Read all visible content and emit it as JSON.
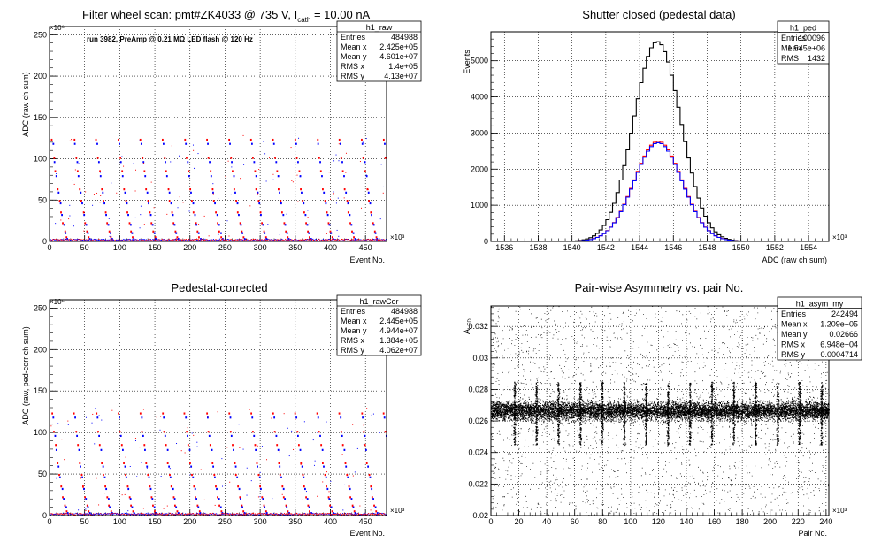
{
  "panels": [
    {
      "title": "Filter wheel scan: pmt#ZK4033 @   735 V, I",
      "title_sub": "cath",
      "title_tail": " = 10.00 nA",
      "annotation": "run 3982, PreAmp @ 0.21 MΩ LED flash @  120 Hz",
      "xlabel": "Event No.",
      "ylabel": "ADC (raw ch sum)",
      "x_exponent": "×10³",
      "y_exponent": "×10⁶",
      "stats": {
        "name": "h1_raw",
        "rows": [
          [
            "Entries",
            "484988"
          ],
          [
            "Mean x",
            "2.425e+05"
          ],
          [
            "Mean y",
            "4.601e+07"
          ],
          [
            "RMS x",
            "1.4e+05"
          ],
          [
            "RMS y",
            "4.13e+07"
          ]
        ]
      }
    },
    {
      "title": "Shutter closed (pedestal data)",
      "xlabel": "ADC (raw ch sum)",
      "ylabel": "Events",
      "x_exponent": "×10³",
      "stats": {
        "name": "h1_ped",
        "rows": [
          [
            "Entries",
            "100096"
          ],
          [
            "Mean",
            "1.545e+06"
          ],
          [
            "RMS",
            "1432"
          ]
        ]
      }
    },
    {
      "title": "Pedestal-corrected",
      "xlabel": "Event No.",
      "ylabel": "ADC (raw, ped-corr ch sum)",
      "x_exponent": "×10³",
      "y_exponent": "×10⁶",
      "stats": {
        "name": "h1_rawCor",
        "rows": [
          [
            "Entries",
            "484988"
          ],
          [
            "Mean x",
            "2.445e+05"
          ],
          [
            "Mean y",
            "4.944e+07"
          ],
          [
            "RMS x",
            "1.384e+05"
          ],
          [
            "RMS y",
            "4.062e+07"
          ]
        ]
      }
    },
    {
      "title": "Pair-wise Asymmetry vs. pair No.",
      "xlabel": "Pair No.",
      "ylabel": "A",
      "ylabel_sub": "LED",
      "x_exponent": "×10³",
      "stats": {
        "name": "h1_asym_my",
        "rows": [
          [
            "Entries",
            "242494"
          ],
          [
            "Mean x",
            "1.209e+05"
          ],
          [
            "Mean y",
            "0.02666"
          ],
          [
            "RMS x",
            "6.948e+04"
          ],
          [
            "RMS y",
            "0.0004714"
          ]
        ]
      }
    }
  ],
  "colors": {
    "red": "#ff0000",
    "blue": "#0000ff",
    "black": "#000000",
    "grid": "#000000"
  },
  "chart_data": [
    {
      "type": "scatter",
      "xlim": [
        0,
        480
      ],
      "ylim": [
        0,
        260
      ],
      "xticks": [
        0,
        50,
        100,
        150,
        200,
        250,
        300,
        350,
        400,
        450
      ],
      "yticks": [
        0,
        50,
        100,
        150,
        200,
        250
      ],
      "grid": true,
      "legend": "top-right",
      "levels_red": [
        123,
        101,
        85,
        63,
        49,
        35,
        22,
        12,
        5
      ],
      "levels_blue": [
        118,
        96,
        79,
        59,
        46,
        32,
        20,
        10,
        3
      ],
      "period": 31.5
    },
    {
      "type": "line",
      "xlim": [
        1535.2,
        1555.2
      ],
      "ylim": [
        0,
        5800
      ],
      "xticks": [
        1536,
        1538,
        1540,
        1542,
        1544,
        1546,
        1548,
        1550,
        1552,
        1554
      ],
      "yticks": [
        0,
        1000,
        2000,
        3000,
        4000,
        5000
      ],
      "grid": true,
      "legend": "top-right",
      "series": [
        {
          "name": "",
          "color": "black",
          "mean": 1545.05,
          "sigma": 1.4,
          "peak": 5530
        },
        {
          "name": "",
          "color": "red",
          "mean": 1545.1,
          "sigma": 1.42,
          "peak": 2770
        },
        {
          "name": "",
          "color": "blue",
          "mean": 1545.1,
          "sigma": 1.42,
          "peak": 2730
        }
      ]
    },
    {
      "type": "scatter",
      "xlim": [
        0,
        480
      ],
      "ylim": [
        0,
        260
      ],
      "xticks": [
        0,
        50,
        100,
        150,
        200,
        250,
        300,
        350,
        400,
        450
      ],
      "yticks": [
        0,
        50,
        100,
        150,
        200,
        250
      ],
      "grid": true,
      "legend": "top-right",
      "levels_red": [
        123,
        101,
        85,
        63,
        49,
        35,
        22,
        12,
        5
      ],
      "levels_blue": [
        118,
        96,
        79,
        59,
        46,
        32,
        20,
        10,
        3
      ],
      "period": 31.5
    },
    {
      "type": "scatter",
      "xlim": [
        0,
        242
      ],
      "ylim": [
        0.02,
        0.0333
      ],
      "xticks": [
        0,
        20,
        40,
        60,
        80,
        100,
        120,
        140,
        160,
        180,
        200,
        220,
        240
      ],
      "yticks": [
        0.02,
        0.022,
        0.024,
        0.026,
        0.028,
        0.03,
        0.032
      ],
      "grid": true,
      "legend": "top-right",
      "band_center": 0.02666,
      "band_halfwidth": 0.0005,
      "spike_period": 15.7,
      "spike_high": 0.0285,
      "spike_low": 0.0245
    }
  ]
}
